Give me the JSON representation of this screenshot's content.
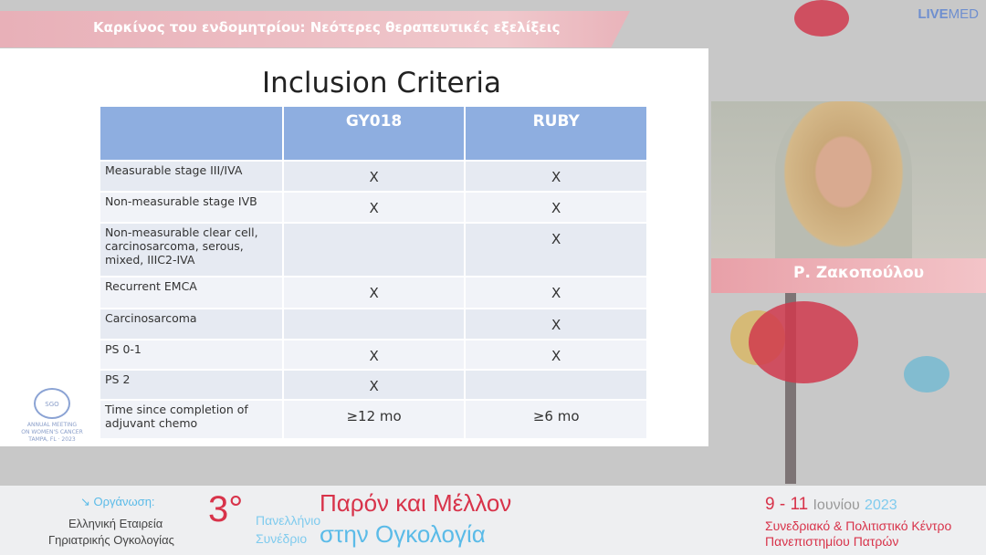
{
  "header": {
    "title": "Καρκίνος του ενδομητρίου: Νεότερες θεραπευτικές εξελίξεις",
    "logo_bold": "LIVE",
    "logo_light": "MED"
  },
  "slide": {
    "title": "Inclusion Criteria",
    "columns": [
      "",
      "GY018",
      "RUBY"
    ],
    "rows": [
      [
        "Measurable stage III/IVA",
        "X",
        "X"
      ],
      [
        "Non-measurable stage IVB",
        "X",
        "X"
      ],
      [
        "Non-measurable clear cell, carcinosarcoma,  serous, mixed, IIIC2-IVA",
        "",
        "X"
      ],
      [
        "Recurrent EMCA",
        "X",
        "X"
      ],
      [
        "Carcinosarcoma",
        "",
        "X"
      ],
      [
        "PS 0-1",
        "X",
        "X"
      ],
      [
        "PS 2",
        "X",
        ""
      ],
      [
        "Time since completion of adjuvant chemo",
        "≥12 mo",
        "≥6 mo"
      ]
    ],
    "logo": {
      "ring": "SGO",
      "line1": "ANNUAL MEETING",
      "line2": "ON WOMEN'S CANCER",
      "line3": "TAMPA, FL · 2023"
    }
  },
  "speaker": {
    "name": "Ρ. Ζακοπούλου"
  },
  "footer": {
    "org_label": "↘ Οργάνωση:",
    "org1": "Ελληνική Εταιρεία",
    "org2": "Γηριατρικής Ογκολογίας",
    "edition": "3°",
    "conf1": "Πανελλήνιο",
    "conf2": "Συνέδριο",
    "title1": "Παρόν και Μέλλον",
    "title2": "στην Ογκολογία",
    "dates": "9 - 11",
    "month": "Ιουνίου",
    "year": "2023",
    "venue1": "Συνεδριακό & Πολιτιστικό Κέντρο",
    "venue2a": "Πανεπιστημίου",
    "venue2b": "Πατρών"
  },
  "colors": {
    "accent_red": "#d8334a",
    "accent_blue": "#5bbbe8",
    "table_header": "#8eaee0"
  }
}
